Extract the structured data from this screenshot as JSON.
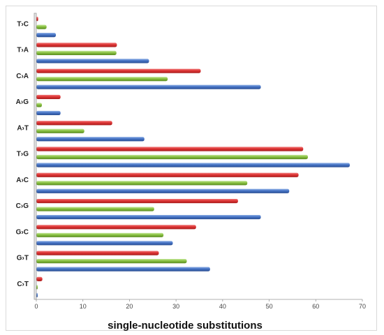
{
  "chart_data": {
    "type": "bar",
    "orientation": "horizontal",
    "categories": [
      "T›C",
      "T›A",
      "C›A",
      "A›G",
      "A›T",
      "T›G",
      "A›C",
      "C›G",
      "G›C",
      "G›T",
      "C›T"
    ],
    "series": [
      {
        "color": "#dd3333",
        "values": [
          0.4,
          17.3,
          35.3,
          5.2,
          16.3,
          57.3,
          56.3,
          43.3,
          34.3,
          26.3,
          1.3
        ]
      },
      {
        "color": "#88c040",
        "values": [
          2.2,
          17.2,
          28.2,
          1.2,
          10.3,
          58.3,
          45.3,
          25.3,
          27.3,
          32.3,
          0.3
        ]
      },
      {
        "color": "#4472c4",
        "values": [
          4.2,
          24.2,
          48.2,
          5.2,
          23.2,
          67.3,
          54.3,
          48.2,
          29.3,
          37.3,
          0.3
        ]
      }
    ],
    "xlabel": "single-nucleotide substitutions",
    "xlim": [
      0,
      70
    ],
    "xticks": [
      "0",
      "10",
      "20",
      "30",
      "40",
      "50",
      "60",
      "70"
    ],
    "grid": false,
    "legend": "none"
  }
}
